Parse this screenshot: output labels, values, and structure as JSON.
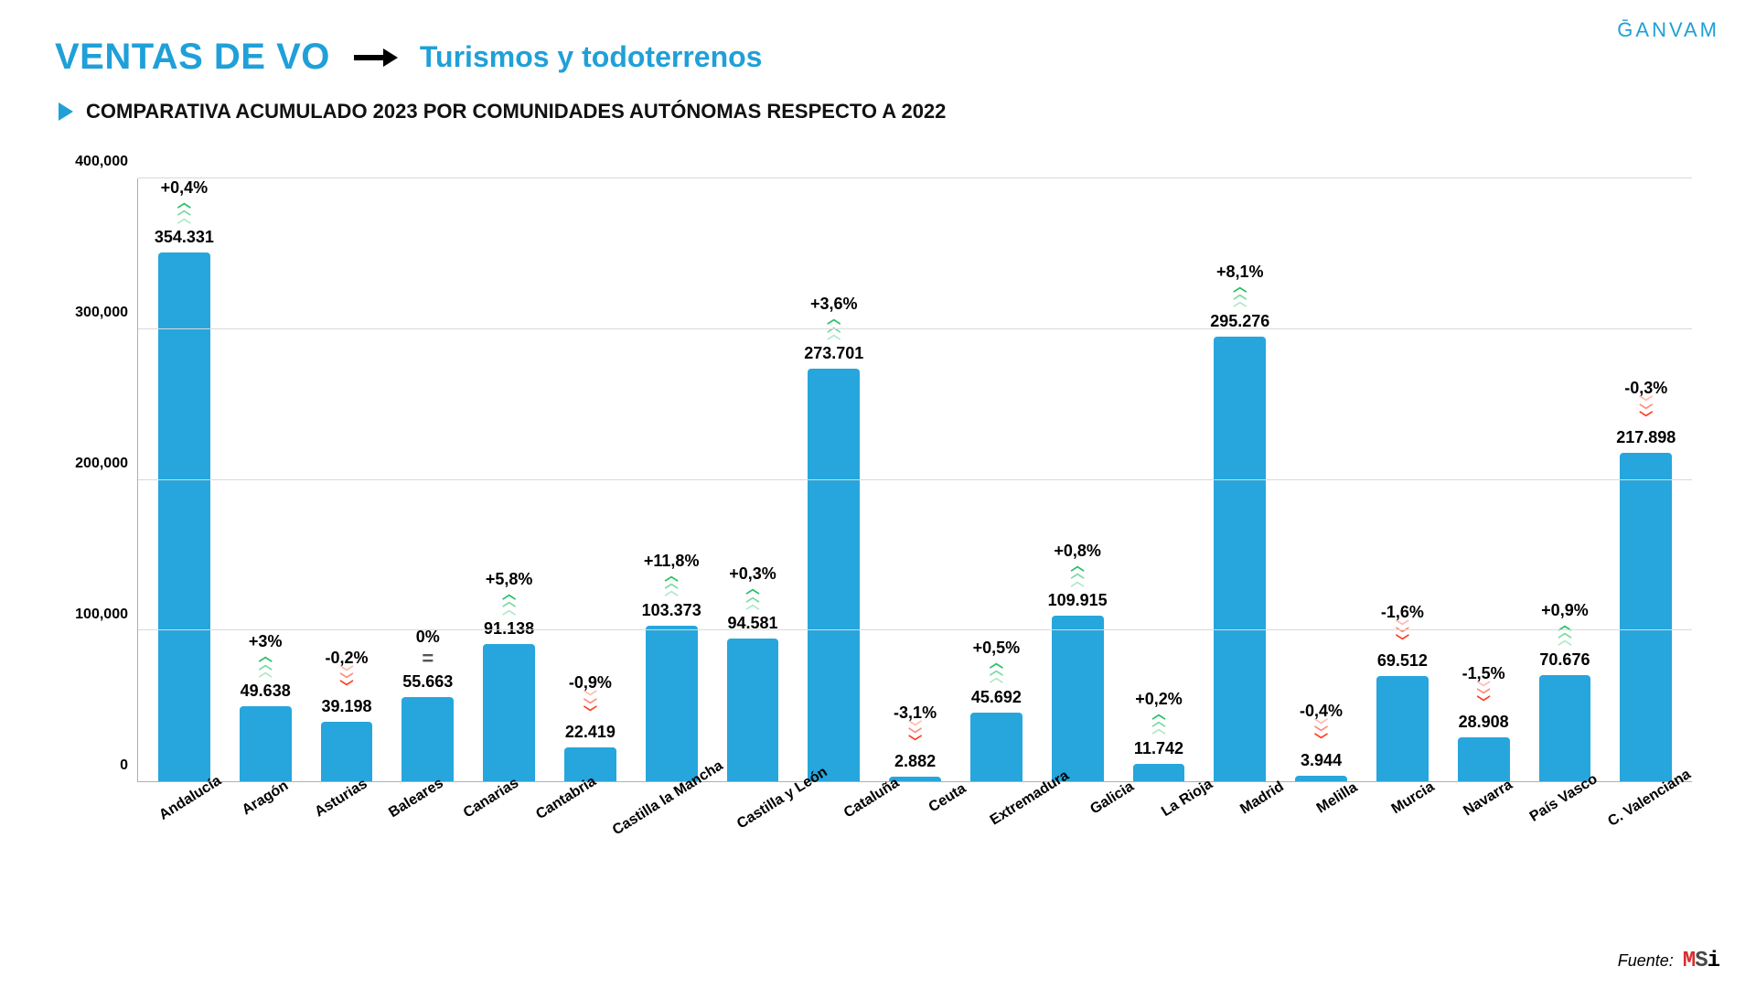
{
  "brand": "ḠANVAM",
  "title": "VENTAS DE VO",
  "subtitle": "Turismos y todoterrenos",
  "section_title": "COMPARATIVA ACUMULADO 2023 POR COMUNIDADES AUTÓNOMAS RESPECTO A 2022",
  "source_label": "Fuente:",
  "source_name": "MSI",
  "chart": {
    "type": "bar",
    "ylim": [
      0,
      400000
    ],
    "ytick_step": 100000,
    "yticks": [
      "0",
      "100,000",
      "200,000",
      "300,000",
      "400,000"
    ],
    "bar_color": "#26a6dc",
    "grid_color": "#d9d9d9",
    "axis_color": "#b0b0b0",
    "up_color": "#21c063",
    "down_color": "#ff3b1f",
    "flat_color": "#555555",
    "text_color": "#000000",
    "categories": [
      {
        "name": "Andalucía",
        "value": 354331,
        "value_label": "354.331",
        "pct": "+0,4%",
        "dir": "up"
      },
      {
        "name": "Aragón",
        "value": 49638,
        "value_label": "49.638",
        "pct": "+3%",
        "dir": "up"
      },
      {
        "name": "Asturias",
        "value": 39198,
        "value_label": "39.198",
        "pct": "-0,2%",
        "dir": "down"
      },
      {
        "name": "Baleares",
        "value": 55663,
        "value_label": "55.663",
        "pct": "0%",
        "dir": "flat"
      },
      {
        "name": "Canarias",
        "value": 91138,
        "value_label": "91.138",
        "pct": "+5,8%",
        "dir": "up"
      },
      {
        "name": "Cantabria",
        "value": 22419,
        "value_label": "22.419",
        "pct": "-0,9%",
        "dir": "down"
      },
      {
        "name": "Castilla la Mancha",
        "value": 103373,
        "value_label": "103.373",
        "pct": "+11,8%",
        "dir": "up"
      },
      {
        "name": "Castilla y León",
        "value": 94581,
        "value_label": "94.581",
        "pct": "+0,3%",
        "dir": "up"
      },
      {
        "name": "Cataluña",
        "value": 273701,
        "value_label": "273.701",
        "pct": "+3,6%",
        "dir": "up"
      },
      {
        "name": "Ceuta",
        "value": 2882,
        "value_label": "2.882",
        "pct": "-3,1%",
        "dir": "down"
      },
      {
        "name": "Extremadura",
        "value": 45692,
        "value_label": "45.692",
        "pct": "+0,5%",
        "dir": "up"
      },
      {
        "name": "Galicia",
        "value": 109915,
        "value_label": "109.915",
        "pct": "+0,8%",
        "dir": "up"
      },
      {
        "name": "La Rioja",
        "value": 11742,
        "value_label": "11.742",
        "pct": "+0,2%",
        "dir": "up"
      },
      {
        "name": "Madrid",
        "value": 295276,
        "value_label": "295.276",
        "pct": "+8,1%",
        "dir": "up"
      },
      {
        "name": "Melilla",
        "value": 3944,
        "value_label": "3.944",
        "pct": "-0,4%",
        "dir": "down"
      },
      {
        "name": "Murcia",
        "value": 69512,
        "value_label": "69.512",
        "pct": "-1,6%",
        "dir": "down"
      },
      {
        "name": "Navarra",
        "value": 28908,
        "value_label": "28.908",
        "pct": "-1,5%",
        "dir": "down"
      },
      {
        "name": "País Vasco",
        "value": 70676,
        "value_label": "70.676",
        "pct": "+0,9%",
        "dir": "up"
      },
      {
        "name": "C. Valenciana",
        "value": 217898,
        "value_label": "217.898",
        "pct": "-0,3%",
        "dir": "down"
      }
    ]
  }
}
